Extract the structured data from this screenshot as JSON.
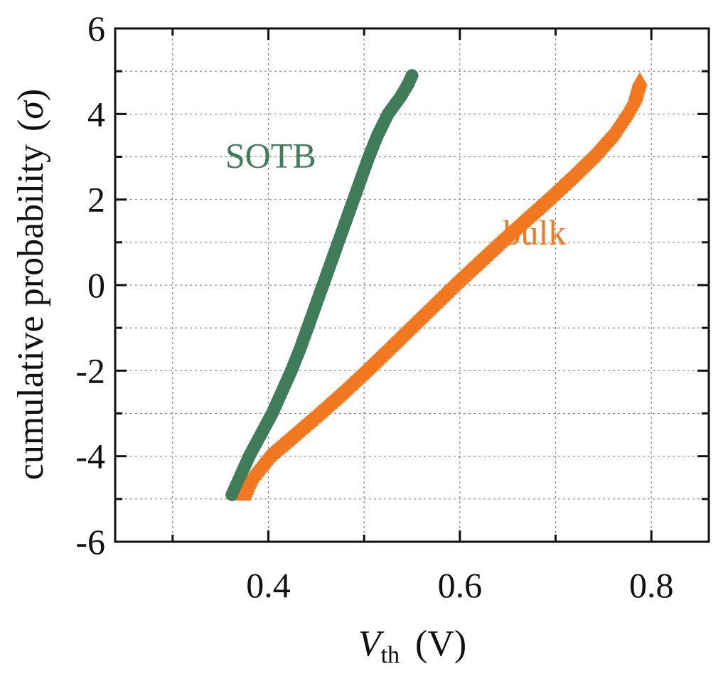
{
  "chart_data": {
    "type": "scatter",
    "title": "",
    "xlabel": {
      "var": "V",
      "sub": "th",
      "unit": "(V)"
    },
    "ylabel": {
      "text": "cumulative probability",
      "unit_open": "(",
      "symbol": "σ",
      "unit_close": ")"
    },
    "xlim": [
      0.24,
      0.86
    ],
    "ylim": [
      -6,
      6
    ],
    "xticks": [
      0.4,
      0.6,
      0.8
    ],
    "xtick_labels": [
      "0.4",
      "0.6",
      "0.8"
    ],
    "xminor": [
      0.3,
      0.5,
      0.7
    ],
    "yticks": [
      -6,
      -4,
      -2,
      0,
      2,
      4,
      6
    ],
    "ytick_labels": [
      "-6",
      "-4",
      "-2",
      "0",
      "2",
      "4",
      "6"
    ],
    "yminor": [
      -5,
      -3,
      -1,
      1,
      3,
      5
    ],
    "grid": true,
    "series": [
      {
        "name": "SOTB",
        "marker": "circle",
        "color": "#3f7d5a",
        "points": [
          [
            0.362,
            -4.9
          ],
          [
            0.37,
            -4.5
          ],
          [
            0.38,
            -4.0
          ],
          [
            0.392,
            -3.5
          ],
          [
            0.404,
            -3.0
          ],
          [
            0.414,
            -2.5
          ],
          [
            0.424,
            -2.0
          ],
          [
            0.433,
            -1.5
          ],
          [
            0.441,
            -1.0
          ],
          [
            0.449,
            -0.5
          ],
          [
            0.457,
            0.0
          ],
          [
            0.465,
            0.5
          ],
          [
            0.473,
            1.0
          ],
          [
            0.481,
            1.5
          ],
          [
            0.489,
            2.0
          ],
          [
            0.497,
            2.5
          ],
          [
            0.505,
            3.0
          ],
          [
            0.514,
            3.5
          ],
          [
            0.525,
            4.0
          ],
          [
            0.538,
            4.4
          ],
          [
            0.546,
            4.7
          ],
          [
            0.55,
            4.9
          ]
        ]
      },
      {
        "name": "bulk",
        "marker": "triangle",
        "color": "#f27820",
        "points": [
          [
            0.374,
            -4.9
          ],
          [
            0.382,
            -4.5
          ],
          [
            0.4,
            -4.0
          ],
          [
            0.426,
            -3.5
          ],
          [
            0.452,
            -3.0
          ],
          [
            0.477,
            -2.5
          ],
          [
            0.501,
            -2.0
          ],
          [
            0.524,
            -1.5
          ],
          [
            0.547,
            -1.0
          ],
          [
            0.57,
            -0.5
          ],
          [
            0.593,
            0.0
          ],
          [
            0.617,
            0.5
          ],
          [
            0.641,
            1.0
          ],
          [
            0.666,
            1.5
          ],
          [
            0.691,
            2.0
          ],
          [
            0.715,
            2.5
          ],
          [
            0.738,
            3.0
          ],
          [
            0.758,
            3.5
          ],
          [
            0.773,
            4.0
          ],
          [
            0.783,
            4.4
          ],
          [
            0.788,
            4.8
          ]
        ]
      }
    ],
    "annotations": [
      {
        "text": "SOTB",
        "color": "#3f7d5a",
        "x": 0.355,
        "y": 2.75
      },
      {
        "text": "bulk",
        "color": "#f27820",
        "x": 0.645,
        "y": 0.95
      }
    ]
  }
}
